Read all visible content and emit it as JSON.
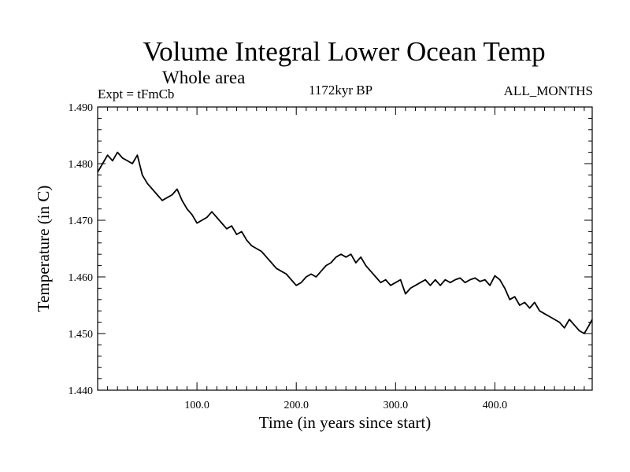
{
  "header": {
    "title": "Volume Integral Lower Ocean Temp",
    "subtitle": "Whole area",
    "experiment": "Expt = tFmCb",
    "period": "1172kyr BP",
    "months": "ALL_MONTHS"
  },
  "chart_data": {
    "type": "line",
    "title": "Volume Integral Lower Ocean Temp",
    "xlabel": "Time (in years since start)",
    "ylabel": "Temperature (in C)",
    "xlim": [
      0,
      498
    ],
    "ylim": [
      1.44,
      1.49
    ],
    "xticks": [
      100,
      200,
      300,
      400
    ],
    "xtick_labels": [
      "100.0",
      "200.0",
      "300.0",
      "400.0"
    ],
    "yticks": [
      1.44,
      1.45,
      1.46,
      1.47,
      1.48,
      1.49
    ],
    "ytick_labels": [
      "1.440",
      "1.450",
      "1.460",
      "1.470",
      "1.480",
      "1.490"
    ],
    "grid": false,
    "series": [
      {
        "name": "Temperature",
        "color": "#000000",
        "x": [
          0,
          5,
          10,
          15,
          20,
          25,
          30,
          35,
          40,
          45,
          50,
          55,
          60,
          65,
          70,
          75,
          80,
          85,
          90,
          95,
          100,
          105,
          110,
          115,
          120,
          125,
          130,
          135,
          140,
          145,
          150,
          155,
          160,
          165,
          170,
          175,
          180,
          185,
          190,
          195,
          200,
          205,
          210,
          215,
          220,
          225,
          230,
          235,
          240,
          245,
          250,
          255,
          260,
          265,
          270,
          275,
          280,
          285,
          290,
          295,
          300,
          305,
          310,
          315,
          320,
          325,
          330,
          335,
          340,
          345,
          350,
          355,
          360,
          365,
          370,
          375,
          380,
          385,
          390,
          395,
          400,
          405,
          410,
          415,
          420,
          425,
          430,
          435,
          440,
          445,
          450,
          455,
          460,
          465,
          470,
          475,
          480,
          485,
          490,
          495,
          498
        ],
        "values": [
          1.4785,
          1.48,
          1.4815,
          1.4805,
          1.482,
          1.481,
          1.4805,
          1.48,
          1.4815,
          1.478,
          1.4765,
          1.4755,
          1.4745,
          1.4735,
          1.474,
          1.4745,
          1.4755,
          1.4735,
          1.472,
          1.471,
          1.4695,
          1.47,
          1.4705,
          1.4715,
          1.4705,
          1.4695,
          1.4685,
          1.469,
          1.4675,
          1.468,
          1.4665,
          1.4655,
          1.465,
          1.4645,
          1.4635,
          1.4625,
          1.4615,
          1.461,
          1.4605,
          1.4595,
          1.4585,
          1.459,
          1.46,
          1.4605,
          1.46,
          1.461,
          1.462,
          1.4625,
          1.4635,
          1.464,
          1.4635,
          1.464,
          1.4625,
          1.4635,
          1.462,
          1.461,
          1.46,
          1.459,
          1.4595,
          1.4585,
          1.459,
          1.4595,
          1.457,
          1.458,
          1.4585,
          1.459,
          1.4595,
          1.4585,
          1.4595,
          1.4585,
          1.4595,
          1.459,
          1.4595,
          1.4598,
          1.459,
          1.4595,
          1.4598,
          1.4592,
          1.4595,
          1.4585,
          1.4602,
          1.4595,
          1.458,
          1.456,
          1.4565,
          1.455,
          1.4555,
          1.4545,
          1.4555,
          1.454,
          1.4535,
          1.453,
          1.4525,
          1.452,
          1.451,
          1.4525,
          1.4515,
          1.4505,
          1.45,
          1.4515,
          1.4525
        ]
      }
    ]
  }
}
